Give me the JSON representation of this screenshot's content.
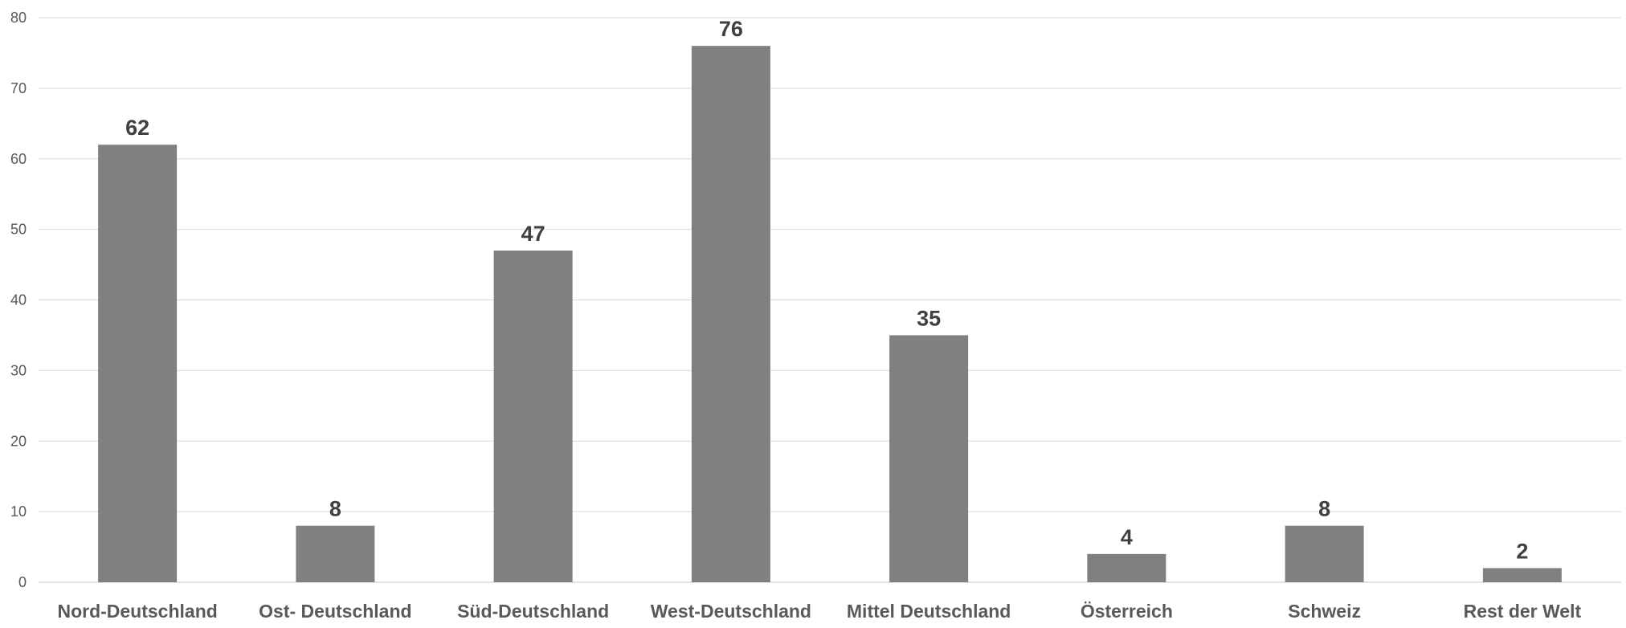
{
  "chart_data": {
    "type": "bar",
    "categories": [
      "Nord-Deutschland",
      "Ost- Deutschland",
      "Süd-Deutschland",
      "West-Deutschland",
      "Mittel Deutschland",
      "Österreich",
      "Schweiz",
      "Rest der Welt"
    ],
    "values": [
      62,
      8,
      47,
      76,
      35,
      4,
      8,
      2
    ],
    "data_labels": [
      "62",
      "8",
      "47",
      "76",
      "35",
      "4",
      "8",
      "2"
    ],
    "title": "",
    "xlabel": "",
    "ylabel": "",
    "ylim": [
      0,
      80
    ],
    "yticks": [
      0,
      10,
      20,
      30,
      40,
      50,
      60,
      70,
      80
    ],
    "grid": true,
    "legend": "none"
  },
  "colors": {
    "bar": "#808080",
    "gridline": "#d9d9d9",
    "tick_label": "#595959",
    "category_label": "#595959",
    "data_label": "#404040",
    "leader_line": "#a6a6a6"
  }
}
